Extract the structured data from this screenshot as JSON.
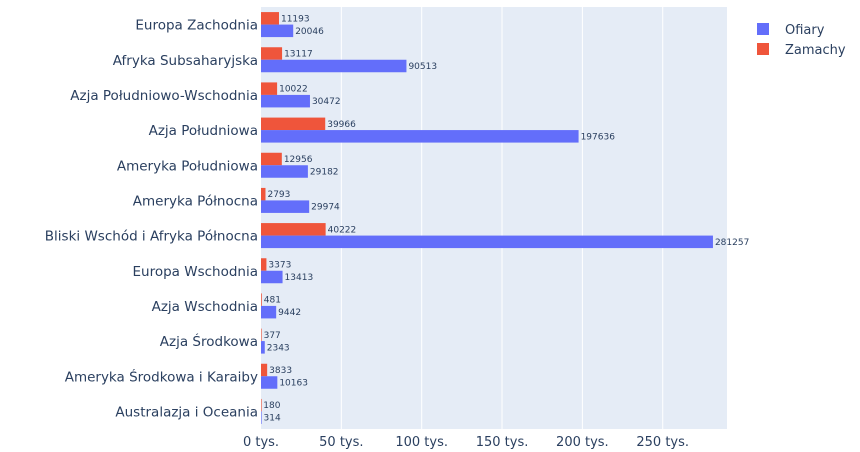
{
  "chart_data": {
    "type": "bar",
    "orientation": "horizontal",
    "categories": [
      "Europa Zachodnia",
      "Afryka Subsaharyjska",
      "Azja Południowo-Wschodnia",
      "Azja Południowa",
      "Ameryka Południowa",
      "Ameryka Północna",
      "Bliski Wschód i Afryka Północna",
      "Europa Wschodnia",
      "Azja Wschodnia",
      "Azja Środkowa",
      "Ameryka Środkowa i Karaiby",
      "Australazja i Oceania"
    ],
    "series": [
      {
        "name": "Zamachy",
        "color": "#ef553b",
        "values": [
          11193,
          13117,
          10022,
          39966,
          12956,
          2793,
          40222,
          3373,
          481,
          377,
          3833,
          180
        ]
      },
      {
        "name": "Ofiary",
        "color": "#636efa",
        "values": [
          20046,
          90513,
          30472,
          197636,
          29182,
          29974,
          281257,
          13413,
          9442,
          2343,
          10163,
          314
        ]
      }
    ],
    "legend": {
      "order": [
        "Ofiary",
        "Zamachy"
      ],
      "placement": "top-right"
    },
    "x_ticks": [
      "0 tys.",
      "50 tys.",
      "100 tys.",
      "150 tys.",
      "200 tys.",
      "250 tys."
    ],
    "x_tick_values": [
      0,
      50000,
      100000,
      150000,
      200000,
      250000
    ],
    "xlim": [
      0,
      290000
    ],
    "grid": true,
    "plot_bgcolor": "#e5ecf6"
  }
}
